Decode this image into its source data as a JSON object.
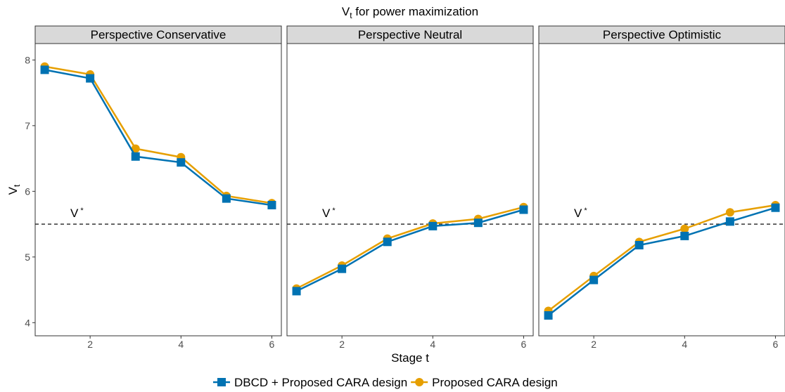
{
  "chart_data": {
    "type": "line",
    "title": {
      "main": "V",
      "subscript": "t",
      "rest": " for power maximization"
    },
    "x_label": "Stage t",
    "y_label": {
      "main": "V",
      "subscript": "t"
    },
    "facets": [
      "Perspective Conservative",
      "Perspective Neutral",
      "Perspective Optimistic"
    ],
    "x": [
      1,
      2,
      3,
      4,
      5,
      6
    ],
    "xlim": [
      0.79,
      6.21
    ],
    "xticks": [
      2,
      4,
      6
    ],
    "ylim": [
      3.8,
      8.25
    ],
    "yticks": [
      4,
      5,
      6,
      7,
      8
    ],
    "hline": {
      "value": 5.5,
      "label": {
        "main": "V",
        "superscript": "*"
      }
    },
    "series": [
      {
        "name": "Proposed CARA design",
        "color": "#E69F00",
        "marker": "circle",
        "values": [
          [
            7.9,
            7.78,
            6.65,
            6.52,
            5.93,
            5.82
          ],
          [
            4.52,
            4.87,
            5.28,
            5.51,
            5.58,
            5.76
          ],
          [
            4.18,
            4.71,
            5.23,
            5.43,
            5.68,
            5.79
          ]
        ]
      },
      {
        "name": "DBCD + Proposed CARA design",
        "color": "#0072B2",
        "marker": "square",
        "values": [
          [
            7.85,
            7.72,
            6.53,
            6.44,
            5.89,
            5.79
          ],
          [
            4.48,
            4.82,
            5.23,
            5.47,
            5.52,
            5.72
          ],
          [
            4.11,
            4.65,
            5.18,
            5.32,
            5.54,
            5.75
          ]
        ]
      }
    ],
    "legend_order": [
      1,
      0
    ],
    "legend": "bottom"
  }
}
